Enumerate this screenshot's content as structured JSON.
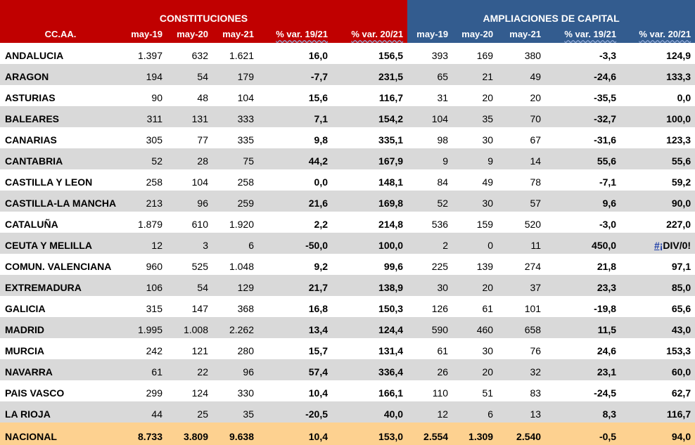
{
  "groups": {
    "constituciones": "CONSTITUCIONES",
    "ampliaciones": "AMPLIACIONES DE CAPITAL"
  },
  "columns": {
    "region": "CC.AA.",
    "c_may19": "may-19",
    "c_may20": "may-20",
    "c_may21": "may-21",
    "c_var1921": "% var. 19/21",
    "c_var2021": "% var. 20/21",
    "a_may19": "may-19",
    "a_may20": "may-20",
    "a_may21": "may-21",
    "a_var1921": "% var. 19/21",
    "a_var2021": "% var. 20/21"
  },
  "rows": [
    {
      "region": "ANDALUCIA",
      "c_may19": "1.397",
      "c_may20": "632",
      "c_may21": "1.621",
      "c_var1921": "16,0",
      "c_var2021": "156,5",
      "a_may19": "393",
      "a_may20": "169",
      "a_may21": "380",
      "a_var1921": "-3,3",
      "a_var2021": "124,9"
    },
    {
      "region": "ARAGON",
      "c_may19": "194",
      "c_may20": "54",
      "c_may21": "179",
      "c_var1921": "-7,7",
      "c_var2021": "231,5",
      "a_may19": "65",
      "a_may20": "21",
      "a_may21": "49",
      "a_var1921": "-24,6",
      "a_var2021": "133,3"
    },
    {
      "region": "ASTURIAS",
      "c_may19": "90",
      "c_may20": "48",
      "c_may21": "104",
      "c_var1921": "15,6",
      "c_var2021": "116,7",
      "a_may19": "31",
      "a_may20": "20",
      "a_may21": "20",
      "a_var1921": "-35,5",
      "a_var2021": "0,0"
    },
    {
      "region": "BALEARES",
      "c_may19": "311",
      "c_may20": "131",
      "c_may21": "333",
      "c_var1921": "7,1",
      "c_var2021": "154,2",
      "a_may19": "104",
      "a_may20": "35",
      "a_may21": "70",
      "a_var1921": "-32,7",
      "a_var2021": "100,0"
    },
    {
      "region": "CANARIAS",
      "c_may19": "305",
      "c_may20": "77",
      "c_may21": "335",
      "c_var1921": "9,8",
      "c_var2021": "335,1",
      "a_may19": "98",
      "a_may20": "30",
      "a_may21": "67",
      "a_var1921": "-31,6",
      "a_var2021": "123,3"
    },
    {
      "region": "CANTABRIA",
      "c_may19": "52",
      "c_may20": "28",
      "c_may21": "75",
      "c_var1921": "44,2",
      "c_var2021": "167,9",
      "a_may19": "9",
      "a_may20": "9",
      "a_may21": "14",
      "a_var1921": "55,6",
      "a_var2021": "55,6"
    },
    {
      "region": "CASTILLA Y LEON",
      "c_may19": "258",
      "c_may20": "104",
      "c_may21": "258",
      "c_var1921": "0,0",
      "c_var2021": "148,1",
      "a_may19": "84",
      "a_may20": "49",
      "a_may21": "78",
      "a_var1921": "-7,1",
      "a_var2021": "59,2"
    },
    {
      "region": "CASTILLA-LA MANCHA",
      "c_may19": "213",
      "c_may20": "96",
      "c_may21": "259",
      "c_var1921": "21,6",
      "c_var2021": "169,8",
      "a_may19": "52",
      "a_may20": "30",
      "a_may21": "57",
      "a_var1921": "9,6",
      "a_var2021": "90,0"
    },
    {
      "region": "CATALUÑA",
      "c_may19": "1.879",
      "c_may20": "610",
      "c_may21": "1.920",
      "c_var1921": "2,2",
      "c_var2021": "214,8",
      "a_may19": "536",
      "a_may20": "159",
      "a_may21": "520",
      "a_var1921": "-3,0",
      "a_var2021": "227,0"
    },
    {
      "region": "CEUTA Y MELILLA",
      "c_may19": "12",
      "c_may20": "3",
      "c_may21": "6",
      "c_var1921": "-50,0",
      "c_var2021": "100,0",
      "a_may19": "2",
      "a_may20": "0",
      "a_may21": "11",
      "a_var1921": "450,0",
      "a_var2021": "#¡DIV/0!"
    },
    {
      "region": "COMUN. VALENCIANA",
      "c_may19": "960",
      "c_may20": "525",
      "c_may21": "1.048",
      "c_var1921": "9,2",
      "c_var2021": "99,6",
      "a_may19": "225",
      "a_may20": "139",
      "a_may21": "274",
      "a_var1921": "21,8",
      "a_var2021": "97,1"
    },
    {
      "region": "EXTREMADURA",
      "c_may19": "106",
      "c_may20": "54",
      "c_may21": "129",
      "c_var1921": "21,7",
      "c_var2021": "138,9",
      "a_may19": "30",
      "a_may20": "20",
      "a_may21": "37",
      "a_var1921": "23,3",
      "a_var2021": "85,0"
    },
    {
      "region": "GALICIA",
      "c_may19": "315",
      "c_may20": "147",
      "c_may21": "368",
      "c_var1921": "16,8",
      "c_var2021": "150,3",
      "a_may19": "126",
      "a_may20": "61",
      "a_may21": "101",
      "a_var1921": "-19,8",
      "a_var2021": "65,6"
    },
    {
      "region": "MADRID",
      "c_may19": "1.995",
      "c_may20": "1.008",
      "c_may21": "2.262",
      "c_var1921": "13,4",
      "c_var2021": "124,4",
      "a_may19": "590",
      "a_may20": "460",
      "a_may21": "658",
      "a_var1921": "11,5",
      "a_var2021": "43,0"
    },
    {
      "region": "MURCIA",
      "c_may19": "242",
      "c_may20": "121",
      "c_may21": "280",
      "c_var1921": "15,7",
      "c_var2021": "131,4",
      "a_may19": "61",
      "a_may20": "30",
      "a_may21": "76",
      "a_var1921": "24,6",
      "a_var2021": "153,3"
    },
    {
      "region": "NAVARRA",
      "c_may19": "61",
      "c_may20": "22",
      "c_may21": "96",
      "c_var1921": "57,4",
      "c_var2021": "336,4",
      "a_may19": "26",
      "a_may20": "20",
      "a_may21": "32",
      "a_var1921": "23,1",
      "a_var2021": "60,0"
    },
    {
      "region": "PAIS VASCO",
      "c_may19": "299",
      "c_may20": "124",
      "c_may21": "330",
      "c_var1921": "10,4",
      "c_var2021": "166,1",
      "a_may19": "110",
      "a_may20": "51",
      "a_may21": "83",
      "a_var1921": "-24,5",
      "a_var2021": "62,7"
    },
    {
      "region": "LA RIOJA",
      "c_may19": "44",
      "c_may20": "25",
      "c_may21": "35",
      "c_var1921": "-20,5",
      "c_var2021": "40,0",
      "a_may19": "12",
      "a_may20": "6",
      "a_may21": "13",
      "a_var1921": "8,3",
      "a_var2021": "116,7"
    },
    {
      "region": "NACIONAL",
      "c_may19": "8.733",
      "c_may20": "3.809",
      "c_may21": "9.638",
      "c_var1921": "10,4",
      "c_var2021": "153,0",
      "a_may19": "2.554",
      "a_may20": "1.309",
      "a_may21": "2.540",
      "a_var1921": "-0,5",
      "a_var2021": "94,0"
    }
  ],
  "colors": {
    "constituciones_header": "#c00000",
    "ampliaciones_header": "#335c8f",
    "band_row": "#d9d9d9",
    "total_row": "#fdd190"
  }
}
